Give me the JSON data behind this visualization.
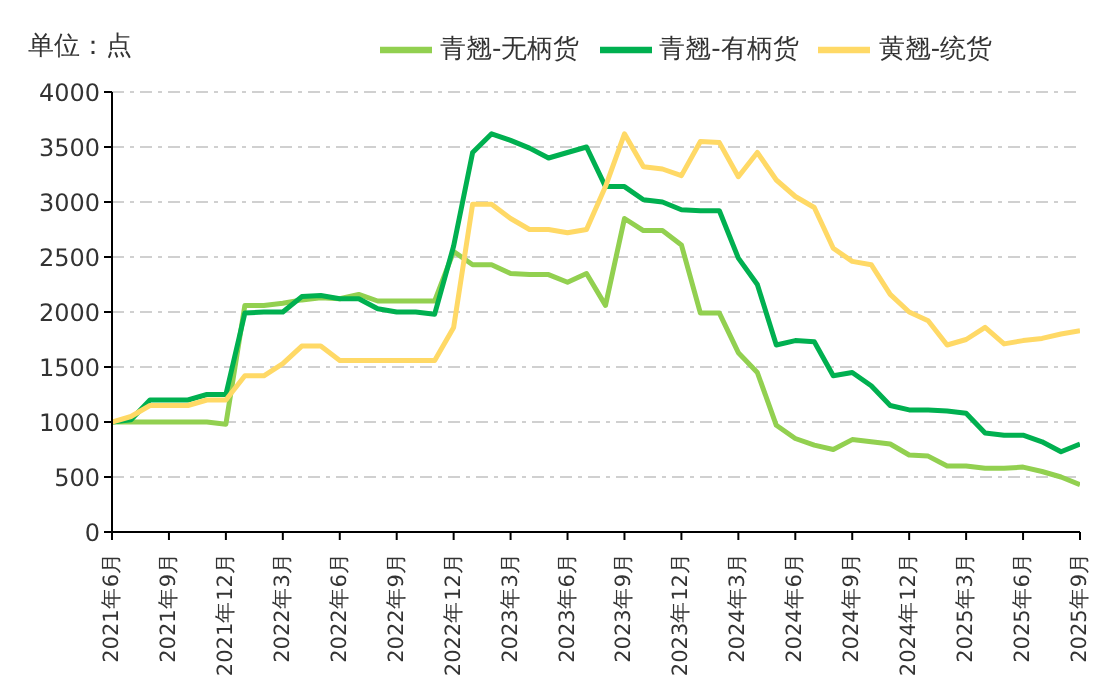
{
  "chart_data": {
    "type": "line",
    "ylabel": "单位：点",
    "x": [
      "2021-06",
      "2021-07",
      "2021-08",
      "2021-09",
      "2021-10",
      "2021-11",
      "2021-12",
      "2022-01",
      "2022-02",
      "2022-03",
      "2022-04",
      "2022-05",
      "2022-06",
      "2022-07",
      "2022-08",
      "2022-09",
      "2022-10",
      "2022-11",
      "2022-12",
      "2023-01",
      "2023-02",
      "2023-03",
      "2023-04",
      "2023-05",
      "2023-06",
      "2023-07",
      "2023-08",
      "2023-09",
      "2023-10",
      "2023-11",
      "2023-12",
      "2024-01",
      "2024-02",
      "2024-03",
      "2024-04",
      "2024-05",
      "2024-06",
      "2024-07",
      "2024-08",
      "2024-09",
      "2024-10",
      "2024-11",
      "2024-12",
      "2025-01",
      "2025-02",
      "2025-03",
      "2025-04",
      "2025-05",
      "2025-06",
      "2025-07",
      "2025-08",
      "2025-09"
    ],
    "series": [
      {
        "name": "青翘-无柄货",
        "color": "#92d050",
        "values": [
          1000,
          1000,
          1000,
          1000,
          1000,
          1000,
          980,
          2060,
          2060,
          2080,
          2110,
          2130,
          2120,
          2160,
          2100,
          2100,
          2100,
          2100,
          2550,
          2430,
          2430,
          2350,
          2340,
          2340,
          2270,
          2350,
          2060,
          2850,
          2740,
          2740,
          2610,
          1990,
          1990,
          1630,
          1450,
          970,
          850,
          790,
          750,
          840,
          820,
          800,
          700,
          690,
          600,
          600,
          580,
          580,
          590,
          550,
          500,
          430
        ]
      },
      {
        "name": "青翘-有柄货",
        "color": "#00b050",
        "values": [
          1000,
          1020,
          1200,
          1200,
          1200,
          1250,
          1250,
          1990,
          2000,
          2000,
          2140,
          2150,
          2120,
          2120,
          2030,
          2000,
          2000,
          1980,
          2600,
          3450,
          3620,
          3560,
          3490,
          3400,
          3450,
          3500,
          3140,
          3140,
          3020,
          3000,
          2930,
          2920,
          2920,
          2490,
          2250,
          1700,
          1740,
          1730,
          1420,
          1450,
          1330,
          1150,
          1110,
          1110,
          1100,
          1080,
          900,
          880,
          880,
          820,
          730,
          800
        ]
      },
      {
        "name": "黄翘-统货",
        "color": "#ffd966",
        "values": [
          1000,
          1050,
          1150,
          1150,
          1150,
          1200,
          1200,
          1420,
          1420,
          1530,
          1690,
          1690,
          1560,
          1560,
          1560,
          1560,
          1560,
          1560,
          1860,
          2980,
          2980,
          2850,
          2750,
          2750,
          2720,
          2750,
          3140,
          3620,
          3320,
          3300,
          3240,
          3550,
          3540,
          3230,
          3450,
          3200,
          3050,
          2950,
          2580,
          2460,
          2430,
          2160,
          2000,
          1920,
          1700,
          1750,
          1860,
          1710,
          1740,
          1760,
          1800,
          1830
        ]
      }
    ],
    "xlim": [
      "2021-06",
      "2025-09"
    ],
    "xticks": [
      {
        "value": "2021-06",
        "label": "2021年6月"
      },
      {
        "value": "2021-09",
        "label": "2021年9月"
      },
      {
        "value": "2021-12",
        "label": "2021年12月"
      },
      {
        "value": "2022-03",
        "label": "2022年3月"
      },
      {
        "value": "2022-06",
        "label": "2022年6月"
      },
      {
        "value": "2022-09",
        "label": "2022年9月"
      },
      {
        "value": "2022-12",
        "label": "2022年12月"
      },
      {
        "value": "2023-03",
        "label": "2023年3月"
      },
      {
        "value": "2023-06",
        "label": "2023年6月"
      },
      {
        "value": "2023-09",
        "label": "2023年9月"
      },
      {
        "value": "2023-12",
        "label": "2023年12月"
      },
      {
        "value": "2024-03",
        "label": "2024年3月"
      },
      {
        "value": "2024-06",
        "label": "2024年6月"
      },
      {
        "value": "2024-09",
        "label": "2024年9月"
      },
      {
        "value": "2024-12",
        "label": "2024年12月"
      },
      {
        "value": "2025-03",
        "label": "2025年3月"
      },
      {
        "value": "2025-06",
        "label": "2025年6月"
      },
      {
        "value": "2025-09",
        "label": "2025年9月"
      }
    ],
    "ylim": [
      0,
      4000
    ],
    "yticks": [
      0,
      500,
      1000,
      1500,
      2000,
      2500,
      3000,
      3500,
      4000
    ],
    "grid": "y",
    "legend": "top",
    "marker": "none",
    "line_style": "solid"
  }
}
